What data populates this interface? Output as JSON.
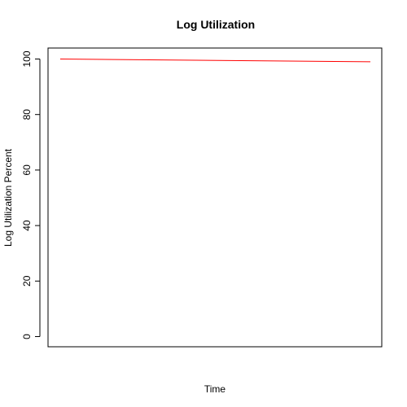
{
  "chart_data": {
    "type": "line",
    "title": "Log Utilization",
    "xlabel": "Time",
    "ylabel": "Log Utilization Percent",
    "ylim": [
      0,
      100
    ],
    "yticks": [
      0,
      20,
      40,
      60,
      80,
      100
    ],
    "grid": false,
    "series": [
      {
        "color": "#ff0000",
        "x": [
          1,
          2
        ],
        "y": [
          100,
          99
        ]
      }
    ]
  }
}
